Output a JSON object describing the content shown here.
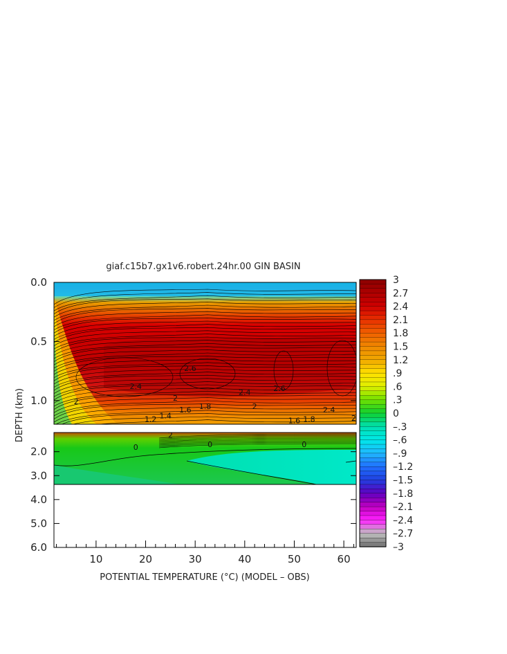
{
  "chart_data": {
    "type": "heatmap",
    "title": "giaf.c15b7.gx1v6.robert.24hr.00 GIN BASIN",
    "xlabel": "POTENTIAL TEMPERATURE (°C) (MODEL – OBS)",
    "ylabel": "DEPTH (km)",
    "x_ticks": [
      "10",
      "20",
      "30",
      "40",
      "50",
      "60"
    ],
    "x_tick_values": [
      10,
      20,
      30,
      40,
      50,
      60
    ],
    "xlim": [
      1.5,
      62.5
    ],
    "upper_panel": {
      "ylim": [
        0,
        1.2
      ],
      "y_ticks": [
        "0.0",
        "0.5",
        "1.0"
      ],
      "y_tick_values": [
        0.0,
        0.5,
        1.0
      ]
    },
    "lower_panel": {
      "ylim": [
        1.2,
        6.0
      ],
      "y_ticks": [
        "2.0",
        "3.0",
        "4.0",
        "5.0",
        "6.0"
      ],
      "y_tick_values": [
        2.0,
        3.0,
        4.0,
        5.0,
        6.0
      ],
      "data_bottom_km": 3.3
    },
    "colorbar": {
      "range": [
        -3,
        3
      ],
      "labels": [
        "3",
        "2.7",
        "2.4",
        "2.1",
        "1.8",
        "1.5",
        "1.2",
        ".9",
        ".6",
        ".3",
        "0",
        "–.3",
        "–.6",
        "–.9",
        "–1.2",
        "–1.5",
        "–1.8",
        "–2.1",
        "–2.4",
        "–2.7",
        "–3"
      ],
      "label_values": [
        3,
        2.7,
        2.4,
        2.1,
        1.8,
        1.5,
        1.2,
        0.9,
        0.6,
        0.3,
        0,
        -0.3,
        -0.6,
        -0.9,
        -1.2,
        -1.5,
        -1.8,
        -2.1,
        -2.4,
        -2.7,
        -3
      ]
    },
    "contour_labels": [
      {
        "text": "0",
        "x": 18,
        "z": 1.92
      },
      {
        "text": "0",
        "x": 33,
        "z": 1.8
      },
      {
        "text": "0",
        "x": 52,
        "z": 1.8
      },
      {
        "text": "2",
        "x": 25,
        "z": 1.42
      },
      {
        "text": "2.6",
        "x": 29,
        "z": 0.75
      },
      {
        "text": "2.6",
        "x": 47,
        "z": 0.92
      },
      {
        "text": "2.4",
        "x": 18,
        "z": 0.9
      },
      {
        "text": "2.4",
        "x": 40,
        "z": 0.95
      },
      {
        "text": "2",
        "x": 26,
        "z": 1.0
      },
      {
        "text": "2",
        "x": 42,
        "z": 1.07
      },
      {
        "text": "1.8",
        "x": 32,
        "z": 1.07
      },
      {
        "text": "1.6",
        "x": 28,
        "z": 1.1
      },
      {
        "text": "1.4",
        "x": 24,
        "z": 1.15
      },
      {
        "text": "1.2",
        "x": 21,
        "z": 1.18
      },
      {
        "text": "2",
        "x": 62,
        "z": 1.17
      },
      {
        "text": "1.6",
        "x": 50,
        "z": 1.19
      },
      {
        "text": "1.8",
        "x": 53,
        "z": 1.18
      },
      {
        "text": "2.4",
        "x": 57,
        "z": 1.1
      },
      {
        "text": "2",
        "x": 6,
        "z": 1.03
      }
    ]
  }
}
